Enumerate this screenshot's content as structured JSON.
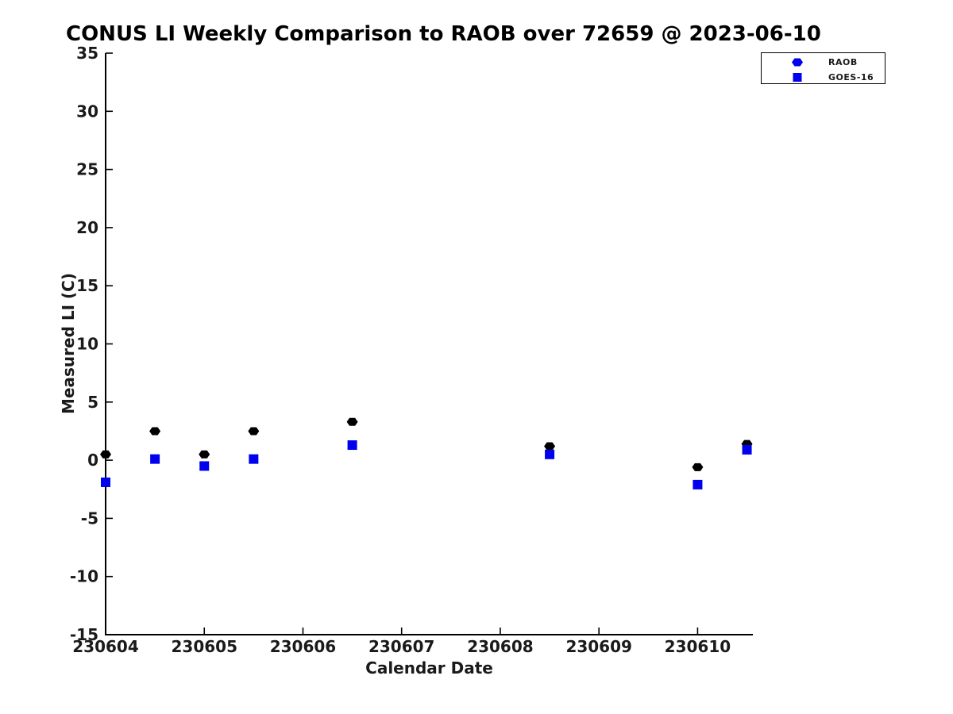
{
  "figure": {
    "background": "#ffffff"
  },
  "chart_data": {
    "type": "scatter",
    "title": "CONUS LI Weekly Comparison to RAOB over 72659 @ 2023-06-10",
    "xlabel": "Calendar Date",
    "ylabel": "Measured LI (C)",
    "xlim": [
      230604,
      230610.56
    ],
    "ylim": [
      -15,
      35
    ],
    "xticks": [
      "230604",
      "230605",
      "230606",
      "230607",
      "230608",
      "230609",
      "230610"
    ],
    "yticks": [
      -15,
      -10,
      -5,
      0,
      5,
      10,
      15,
      20,
      25,
      30,
      35
    ],
    "grid": false,
    "axis_color": "#000000",
    "legend": {
      "position": "top-right",
      "border_color": "#000000",
      "background": "#ffffff",
      "marker_color": "#0000ee"
    },
    "series": [
      {
        "name": "RAOB",
        "marker": "hexagon",
        "color": "#000000",
        "legend_marker_color": "#0000ee",
        "x": [
          230604,
          230604.5,
          230605,
          230605.5,
          230606.5,
          230608.5,
          230610,
          230610.5
        ],
        "y": [
          0.5,
          2.5,
          0.5,
          2.5,
          3.3,
          1.2,
          -0.6,
          1.4
        ]
      },
      {
        "name": "GOES-16",
        "marker": "square",
        "color": "#0000ee",
        "legend_marker_color": "#0000ee",
        "x": [
          230604,
          230604.5,
          230605,
          230605.5,
          230606.5,
          230608.5,
          230610,
          230610.5
        ],
        "y": [
          -1.9,
          0.1,
          -0.5,
          0.1,
          1.3,
          0.5,
          -2.1,
          0.9
        ]
      }
    ]
  }
}
